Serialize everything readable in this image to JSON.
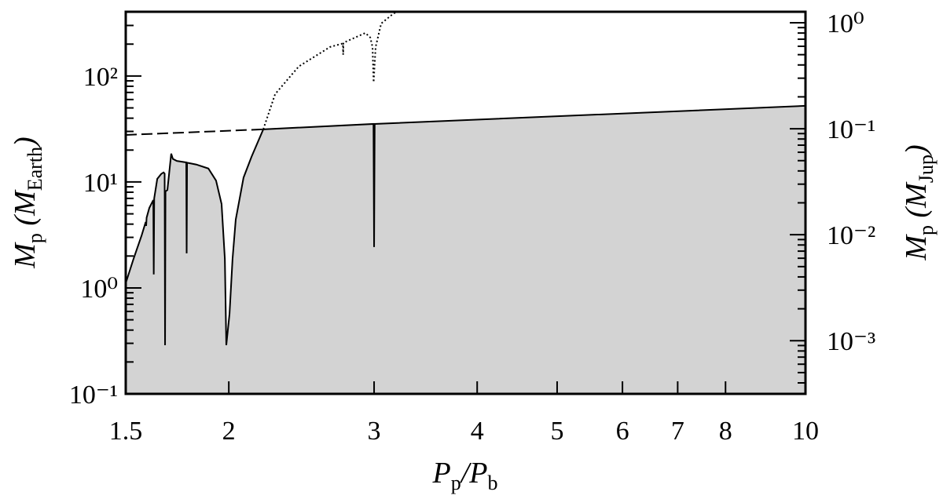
{
  "chart_data": {
    "type": "line",
    "xscale": "log",
    "yscale": "log",
    "xlabel": [
      "P",
      "p",
      "/P",
      "b"
    ],
    "ylabel": [
      "M",
      "p",
      " (M",
      "Earth",
      ")"
    ],
    "y2label": [
      "M",
      "p",
      " (M",
      "Jup",
      ")"
    ],
    "xlim": [
      1.5,
      10
    ],
    "ylim": [
      0.1,
      404
    ],
    "y2lim": [
      0.000315,
      1.27
    ],
    "xticks": [
      1.5,
      2,
      3,
      4,
      5,
      6,
      7,
      8,
      10
    ],
    "yticks": [
      {
        "value": 0.1,
        "label": "10⁻¹"
      },
      {
        "value": 1,
        "label": "10⁰"
      },
      {
        "value": 10,
        "label": "10¹"
      },
      {
        "value": 100,
        "label": "10²"
      }
    ],
    "yminor": [
      0.2,
      0.3,
      0.4,
      0.5,
      0.6,
      0.7,
      0.8,
      0.9,
      2,
      3,
      4,
      5,
      6,
      7,
      8,
      9,
      20,
      30,
      40,
      50,
      60,
      70,
      80,
      90,
      200,
      300
    ],
    "y2ticks": [
      {
        "value": 0.001,
        "label": "10⁻³"
      },
      {
        "value": 0.01,
        "label": "10⁻²"
      },
      {
        "value": 0.1,
        "label": "10⁻¹"
      },
      {
        "value": 1,
        "label": "10⁰"
      }
    ],
    "y2minor": [
      0.0004,
      0.0005,
      0.0006,
      0.0007,
      0.0008,
      0.0009,
      0.002,
      0.003,
      0.004,
      0.005,
      0.006,
      0.007,
      0.008,
      0.009,
      0.02,
      0.03,
      0.04,
      0.05,
      0.06,
      0.07,
      0.08,
      0.09,
      0.2,
      0.3,
      0.4,
      0.5,
      0.6,
      0.7,
      0.8,
      0.9
    ],
    "series": [
      {
        "color": "#000000",
        "style": "solid",
        "fill": "#d3d3d3",
        "x": [
          1.5,
          1.533,
          1.568,
          1.586,
          1.588,
          1.59,
          1.602,
          1.62,
          1.622,
          1.624,
          1.638,
          1.656,
          1.667,
          1.672,
          1.674,
          1.676,
          1.685,
          1.703,
          1.711,
          1.73,
          1.776,
          1.778,
          1.78,
          1.827,
          1.889,
          1.93,
          1.96,
          1.978,
          1.986,
          2.004,
          2.021,
          2.039,
          2.084,
          2.131,
          2.202,
          2.995,
          3.0,
          3.005,
          10
        ],
        "values": [
          1.11,
          1.88,
          3.13,
          4.19,
          3.85,
          4.6,
          5.69,
          6.75,
          1.34,
          7.0,
          10.7,
          11.9,
          12.3,
          12.0,
          0.288,
          8.15,
          8.4,
          18.5,
          16.5,
          15.8,
          15.3,
          2.12,
          15.2,
          14.6,
          13.4,
          10.3,
          6.2,
          1.88,
          0.288,
          0.569,
          1.88,
          4.41,
          11.0,
          17.3,
          31.4,
          35.3,
          2.43,
          35.3,
          52.3
        ]
      },
      {
        "color": "#000000",
        "style": "dashed",
        "x": [
          1.5,
          2.202
        ],
        "values": [
          27.8,
          31.4
        ]
      },
      {
        "color": "#000000",
        "style": "dotted",
        "x": [
          2.202,
          2.276,
          2.431,
          2.653,
          2.75,
          2.752,
          2.754,
          2.928,
          2.968,
          2.987,
          2.996,
          3.013,
          3.06,
          3.162,
          3.197
        ],
        "values": [
          31.4,
          67.5,
          123,
          188,
          203,
          159,
          206,
          255,
          231,
          188,
          87.3,
          188,
          313,
          385,
          404
        ]
      }
    ]
  }
}
